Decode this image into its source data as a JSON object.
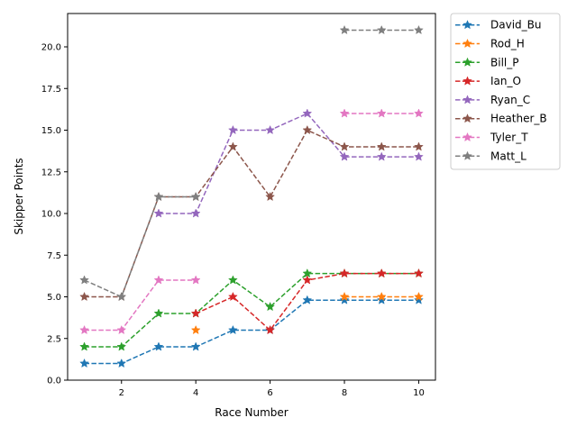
{
  "chart_data": {
    "type": "line",
    "title": "",
    "xlabel": "Race Number",
    "ylabel": "Skipper Points",
    "xlim": [
      0.55,
      10.45
    ],
    "ylim": [
      0,
      22
    ],
    "xticks": [
      2,
      4,
      6,
      8,
      10
    ],
    "yticks": [
      0.0,
      2.5,
      5.0,
      7.5,
      10.0,
      12.5,
      15.0,
      17.5,
      20.0
    ],
    "xtick_labels": [
      "2",
      "4",
      "6",
      "8",
      "10"
    ],
    "ytick_labels": [
      "0.0",
      "2.5",
      "5.0",
      "7.5",
      "10.0",
      "12.5",
      "15.0",
      "17.5",
      "20.0"
    ],
    "grid": false,
    "legend_placement": "outside-upper-right",
    "line_style": "dashed",
    "marker": "star",
    "x": [
      1,
      2,
      3,
      4,
      5,
      6,
      7,
      8,
      9,
      10
    ],
    "series": [
      {
        "name": "David_Bu",
        "color": "#1f77b4",
        "values": [
          1,
          1,
          2,
          2,
          3,
          3,
          4.8,
          4.8,
          4.8,
          4.8
        ]
      },
      {
        "name": "Rod_H",
        "color": "#ff7f0e",
        "values": [
          null,
          null,
          null,
          3,
          null,
          null,
          null,
          5,
          5,
          5
        ]
      },
      {
        "name": "Bill_P",
        "color": "#2ca02c",
        "values": [
          2,
          2,
          4,
          4,
          6,
          4.4,
          6.4,
          6.4,
          6.4,
          6.4
        ]
      },
      {
        "name": "Ian_O",
        "color": "#d62728",
        "values": [
          null,
          null,
          null,
          4,
          5,
          3,
          6,
          6.4,
          6.4,
          6.4
        ]
      },
      {
        "name": "Ryan_C",
        "color": "#9467bd",
        "values": [
          null,
          null,
          10,
          10,
          15,
          15,
          16,
          13.4,
          13.4,
          13.4
        ]
      },
      {
        "name": "Heather_B",
        "color": "#8c564b",
        "values": [
          5,
          5,
          11,
          11,
          14,
          11,
          15,
          14,
          14,
          14
        ]
      },
      {
        "name": "Tyler_T",
        "color": "#e377c2",
        "values": [
          3,
          3,
          6,
          6,
          null,
          null,
          null,
          16,
          16,
          16
        ]
      },
      {
        "name": "Matt_L",
        "color": "#7f7f7f",
        "values": [
          6,
          5,
          11,
          11,
          null,
          null,
          null,
          21,
          21,
          21
        ]
      }
    ]
  }
}
